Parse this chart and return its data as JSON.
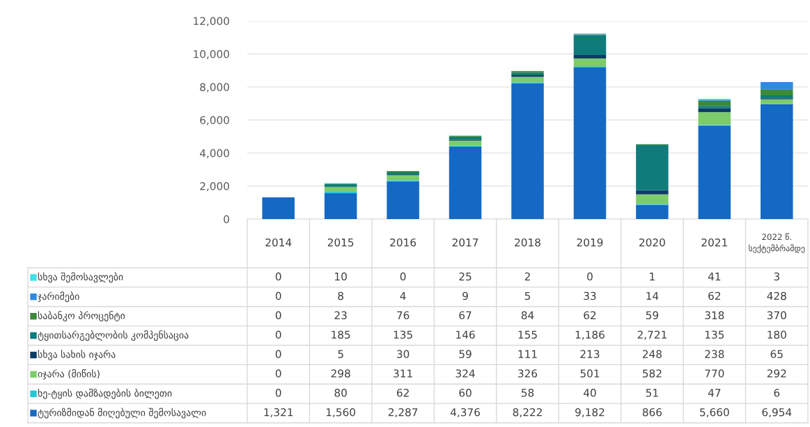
{
  "chart_data": {
    "type": "bar",
    "stacked": true,
    "grid": "y",
    "legend": "bottom",
    "categories": [
      "2014",
      "2015",
      "2016",
      "2017",
      "2018",
      "2019",
      "2020",
      "2021",
      "2022 წ.\nსექტემბრამდე"
    ],
    "ylim": [
      0,
      12000
    ],
    "yticks": [
      0,
      {
        "value": 2000,
        "label": "2,000"
      },
      {
        "value": 4000,
        "label": "4,000"
      },
      {
        "value": 6000,
        "label": "6,000"
      },
      {
        "value": 8000,
        "label": "8,000"
      },
      {
        "value": 10000,
        "label": "10,000"
      },
      {
        "value": 12000,
        "label": "12,000"
      }
    ],
    "series": [
      {
        "name": "ტურიზმიდან მიღებული შემოსავალი",
        "color": "#1469c4",
        "values": [
          1321,
          1560,
          2287,
          4376,
          8222,
          9182,
          866,
          5660,
          6954
        ],
        "value_labels": [
          "1,321",
          "1,560",
          "2,287",
          "4,376",
          "8,222",
          "9,182",
          "866",
          "5,660",
          "6,954"
        ]
      },
      {
        "name": "ხე-ტყის დამზადების ბილეთი",
        "color": "#26c6da",
        "values": [
          0,
          80,
          62,
          60,
          58,
          40,
          51,
          47,
          6
        ],
        "value_labels": [
          "0",
          "80",
          "62",
          "60",
          "58",
          "40",
          "51",
          "47",
          "6"
        ]
      },
      {
        "name": "იჯარა (მიწის)",
        "color": "#7dcc6b",
        "values": [
          0,
          298,
          311,
          324,
          326,
          501,
          582,
          770,
          292
        ],
        "value_labels": [
          "0",
          "298",
          "311",
          "324",
          "326",
          "501",
          "582",
          "770",
          "292"
        ]
      },
      {
        "name": "სხვა სახის იჯარა",
        "color": "#0d3b66",
        "values": [
          0,
          5,
          30,
          59,
          111,
          213,
          248,
          238,
          65
        ],
        "value_labels": [
          "0",
          "5",
          "30",
          "59",
          "111",
          "213",
          "248",
          "238",
          "65"
        ]
      },
      {
        "name": "ტყითსარგებლობის კომპენსაცია",
        "color": "#0f7b7b",
        "values": [
          0,
          185,
          135,
          146,
          155,
          1186,
          2721,
          135,
          180
        ],
        "value_labels": [
          "0",
          "185",
          "135",
          "146",
          "155",
          "1,186",
          "2,721",
          "135",
          "180"
        ]
      },
      {
        "name": "საბანკო პროცენტი",
        "color": "#3a8a3a",
        "values": [
          0,
          23,
          76,
          67,
          84,
          62,
          59,
          318,
          370
        ],
        "value_labels": [
          "0",
          "23",
          "76",
          "67",
          "84",
          "62",
          "59",
          "318",
          "370"
        ]
      },
      {
        "name": "ჯარიმები",
        "color": "#2e8ae6",
        "values": [
          0,
          8,
          4,
          9,
          5,
          33,
          14,
          62,
          428
        ],
        "value_labels": [
          "0",
          "8",
          "4",
          "9",
          "5",
          "33",
          "14",
          "62",
          "428"
        ]
      },
      {
        "name": "სხვა შემოსავლები",
        "color": "#40e0e8",
        "values": [
          0,
          10,
          0,
          25,
          2,
          0,
          1,
          41,
          3
        ],
        "value_labels": [
          "0",
          "10",
          "0",
          "25",
          "2",
          "0",
          "1",
          "41",
          "3"
        ]
      }
    ]
  }
}
